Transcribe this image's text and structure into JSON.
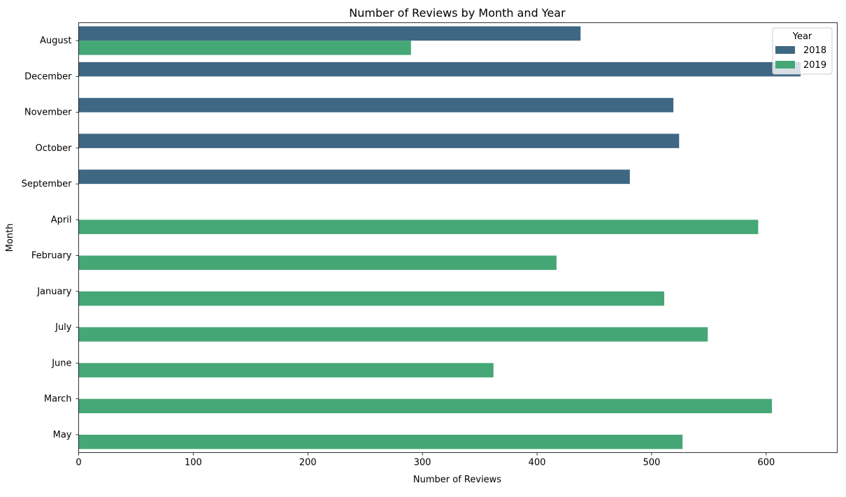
{
  "chart_data": {
    "type": "bar",
    "orientation": "horizontal",
    "title": "Number of Reviews by Month and Year",
    "xlabel": "Number of Reviews",
    "ylabel": "Month",
    "xlim": [
      0,
      662
    ],
    "xticks": [
      0,
      100,
      200,
      300,
      400,
      500,
      600
    ],
    "grid": false,
    "categories": [
      "August",
      "December",
      "November",
      "October",
      "September",
      "April",
      "February",
      "January",
      "July",
      "June",
      "March",
      "May"
    ],
    "series": [
      {
        "name": "2018",
        "color": "#3e6783",
        "values": [
          438,
          630,
          519,
          524,
          481,
          null,
          null,
          null,
          null,
          null,
          null,
          null
        ]
      },
      {
        "name": "2019",
        "color": "#45a776",
        "values": [
          290,
          null,
          null,
          null,
          null,
          593,
          417,
          511,
          549,
          362,
          605,
          527
        ]
      }
    ],
    "legend": {
      "title": "Year",
      "placement": "top-right"
    }
  }
}
